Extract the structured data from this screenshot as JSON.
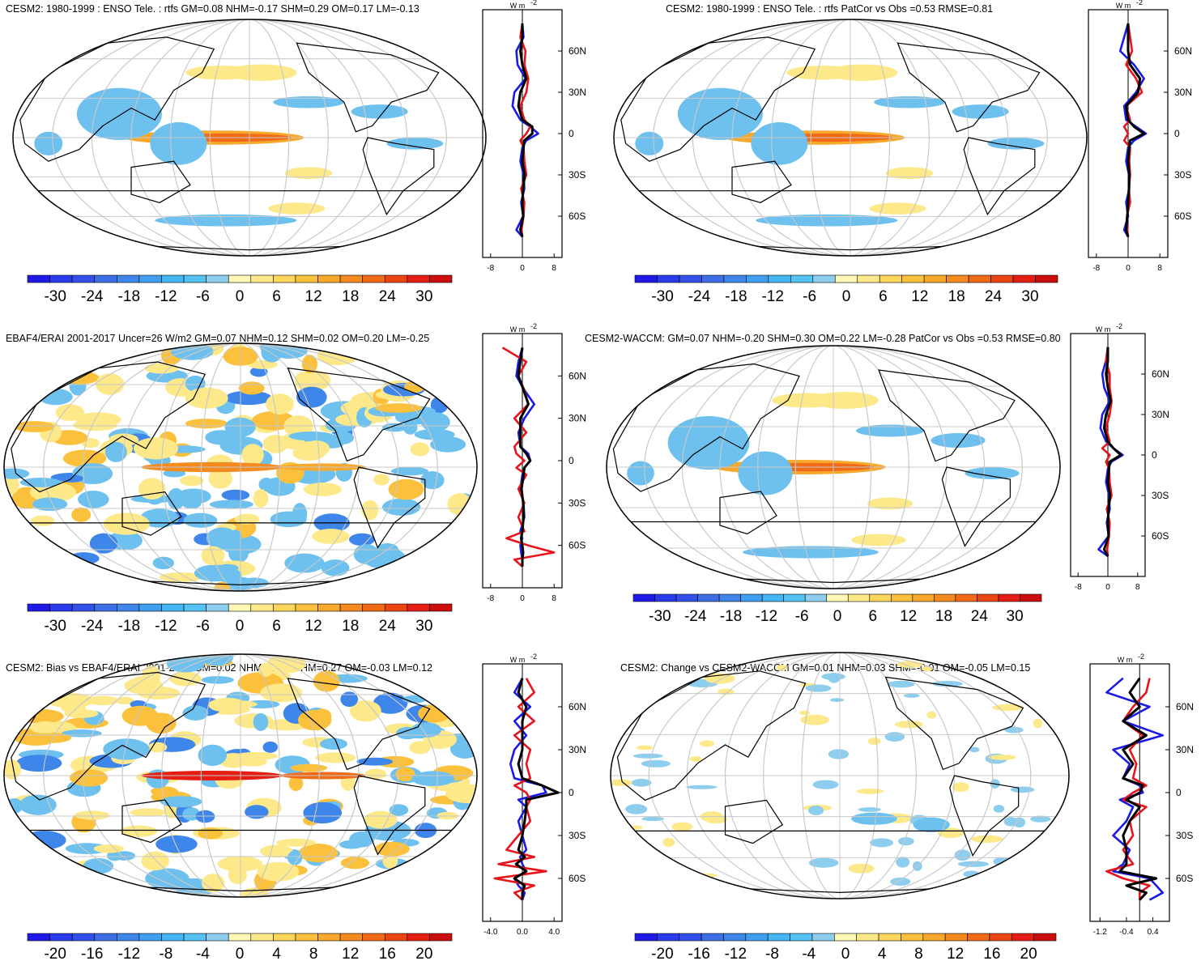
{
  "palette": {
    "neg": [
      "#2019e8",
      "#2a3bec",
      "#3450ea",
      "#3d6ee6",
      "#3f86ea",
      "#3f9ff0",
      "#44b6f4",
      "#54c2f2",
      "#8dcdee"
    ],
    "pos": [
      "#fff8b6",
      "#fde98a",
      "#fdd65c",
      "#fbc13c",
      "#f8a82a",
      "#f58a1f",
      "#f16a17",
      "#ec4514",
      "#e41e12",
      "#cc0d0d"
    ],
    "blue_line": "#1a1ae6",
    "red_line": "#e8141c",
    "black_line": "#000000",
    "grid": "#c8c8c8",
    "warm_shade": "#fde98a",
    "cool_shade": "#6ec1ee"
  },
  "chart_data": [
    {
      "type": "heatmap",
      "title": "CESM2: 1980-1999 : ENSO Tele. : rtfs GM=0.08 NHM=-0.17 SHM=0.29 OM=0.17 LM=-0.13",
      "colorbar_labels": [
        "-30",
        "-24",
        "-18",
        "-12",
        "-6",
        "0",
        "6",
        "12",
        "18",
        "24",
        "30"
      ],
      "zonal": {
        "unit": "W m",
        "unit_exp": "-2",
        "xticks": [
          "-8",
          "0",
          "8"
        ],
        "xlim": [
          -10,
          10
        ],
        "yticks": [
          "60N",
          "30N",
          "0",
          "30S",
          "60S"
        ],
        "ytick_values": [
          60,
          30,
          0,
          -30,
          -60
        ],
        "lat": [
          80,
          70,
          60,
          50,
          40,
          30,
          20,
          10,
          5,
          0,
          -5,
          -10,
          -20,
          -30,
          -40,
          -50,
          -60,
          -70,
          -75
        ],
        "series": [
          {
            "color": "blue",
            "values": [
              0,
              0.3,
              -1.5,
              -1.2,
              0.8,
              -2.0,
              -2.5,
              -0.5,
              2.0,
              4.0,
              1.0,
              0,
              -0.5,
              0.3,
              0.5,
              -0.3,
              0.2,
              -1.5,
              0
            ]
          },
          {
            "color": "red",
            "values": [
              0,
              -0.5,
              0.8,
              0.5,
              1.5,
              1.0,
              -0.5,
              0.5,
              2.0,
              1.0,
              -0.5,
              0.3,
              0.5,
              1.0,
              -0.3,
              0.5,
              0.3,
              -0.2,
              0
            ]
          },
          {
            "color": "black",
            "values": [
              0,
              0,
              -0.5,
              0,
              1.0,
              -0.5,
              -1.0,
              0,
              2.5,
              2.5,
              0.5,
              0.3,
              0,
              0.6,
              0.2,
              0,
              0.2,
              -0.5,
              0
            ]
          }
        ]
      }
    },
    {
      "type": "heatmap",
      "title": "CESM2: 1980-1999 : ENSO Tele. : rtfs PatCor vs Obs =0.53 RMSE=0.81",
      "colorbar_labels": [
        "-30",
        "-24",
        "-18",
        "-12",
        "-6",
        "0",
        "6",
        "12",
        "18",
        "24",
        "30"
      ],
      "zonal": {
        "unit": "W m",
        "unit_exp": "-2",
        "xticks": [
          "-8",
          "0",
          "8"
        ],
        "xlim": [
          -10,
          10
        ],
        "yticks": [
          "60N",
          "30N",
          "0",
          "30S",
          "60S"
        ],
        "ytick_values": [
          60,
          30,
          0,
          -30,
          -60
        ],
        "lat": [
          80,
          70,
          60,
          50,
          40,
          30,
          20,
          10,
          5,
          0,
          -5,
          -10,
          -20,
          -30,
          -40,
          -50,
          -60,
          -70,
          -75
        ],
        "series": [
          {
            "color": "blue",
            "values": [
              0,
              -1.0,
              -2.0,
              1.5,
              4.0,
              2.0,
              -1.0,
              -0.5,
              2.0,
              4.5,
              1.5,
              0,
              -0.5,
              0.2,
              0.3,
              -0.5,
              0,
              -1.0,
              0
            ]
          },
          {
            "color": "red",
            "values": [
              0,
              0.5,
              1.0,
              -0.5,
              2.0,
              3.5,
              -0.5,
              0.5,
              -1.0,
              0,
              -1.0,
              0.5,
              0.3,
              0.5,
              0.2,
              0.5,
              -0.3,
              -0.2,
              0
            ]
          },
          {
            "color": "black",
            "values": [
              0,
              0,
              0,
              0.5,
              3.0,
              2.5,
              -0.5,
              0,
              1.5,
              4.0,
              0.5,
              0.3,
              0,
              0.3,
              0.2,
              0,
              -0.2,
              -0.5,
              0
            ]
          }
        ]
      }
    },
    {
      "type": "heatmap",
      "title": "EBAF4/ERAI 2001-2017 Uncer=26 W/m2 GM=0.07 NHM=0.12 SHM=0.02 OM=0.20 LM=-0.25",
      "colorbar_labels": [
        "-30",
        "-24",
        "-18",
        "-12",
        "-6",
        "0",
        "6",
        "12",
        "18",
        "24",
        "30"
      ],
      "zonal": {
        "unit": "W m",
        "unit_exp": "-2",
        "xticks": [
          "-8",
          "0",
          "8"
        ],
        "xlim": [
          -10,
          10
        ],
        "yticks": [
          "60N",
          "30N",
          "0",
          "30S",
          "60S"
        ],
        "ytick_values": [
          60,
          30,
          0,
          -30,
          -60
        ],
        "lat": [
          80,
          70,
          60,
          50,
          40,
          30,
          20,
          10,
          5,
          0,
          -5,
          -10,
          -20,
          -30,
          -40,
          -50,
          -55,
          -60,
          -65,
          -70,
          -75
        ],
        "series": [
          {
            "color": "blue",
            "values": [
              0,
              -1.0,
              -1.5,
              0.5,
              3.0,
              0.5,
              -1.0,
              -0.5,
              1.5,
              2.0,
              0.5,
              0,
              -0.5,
              0.3,
              0.5,
              -0.5,
              0,
              -0.5,
              -0.3,
              0,
              0
            ]
          },
          {
            "color": "red",
            "values": [
              -5.0,
              1.0,
              -1.0,
              0.5,
              1.5,
              -2.0,
              1.0,
              -2.0,
              -1.5,
              0.5,
              -1.5,
              1.0,
              -1.0,
              0.5,
              -1.0,
              0.5,
              -4.0,
              1.5,
              8.0,
              -2.0,
              0
            ]
          },
          {
            "color": "black",
            "values": [
              0,
              -0.5,
              -1.0,
              0.3,
              1.5,
              -0.5,
              -0.5,
              -0.5,
              1.0,
              2.0,
              0.5,
              0.3,
              -0.2,
              0.2,
              0.3,
              0,
              -0.3,
              0,
              0.2,
              0,
              0
            ]
          }
        ]
      }
    },
    {
      "type": "heatmap",
      "title": "CESM2-WACCM: GM=0.07 NHM=-0.20 SHM=0.30 OM=0.22 LM=-0.28 PatCor vs Obs =0.53 RMSE=0.80",
      "colorbar_labels": [
        "-30",
        "-24",
        "-18",
        "-12",
        "-6",
        "0",
        "6",
        "12",
        "18",
        "24",
        "30"
      ],
      "zonal": {
        "unit": "W m",
        "unit_exp": "-2",
        "xticks": [
          "-8",
          "0",
          "8"
        ],
        "xlim": [
          -10,
          10
        ],
        "yticks": [
          "60N",
          "30N",
          "0",
          "30S",
          "60S"
        ],
        "ytick_values": [
          60,
          30,
          0,
          -30,
          -60
        ],
        "lat": [
          80,
          70,
          60,
          50,
          40,
          30,
          20,
          10,
          5,
          0,
          -5,
          -10,
          -20,
          -30,
          -40,
          -50,
          -60,
          -70,
          -75
        ],
        "series": [
          {
            "color": "blue",
            "values": [
              0,
              -0.5,
              -1.5,
              -1.0,
              0.5,
              -1.5,
              -2.0,
              -0.5,
              1.5,
              4.0,
              1.0,
              0,
              -0.5,
              0.3,
              0.5,
              -0.3,
              0.2,
              -2.5,
              0
            ]
          },
          {
            "color": "red",
            "values": [
              0,
              -0.5,
              0.5,
              0.5,
              1.0,
              0.5,
              -0.5,
              0.5,
              -1.5,
              0.5,
              -0.5,
              0.3,
              0.5,
              1.0,
              -0.3,
              0.5,
              0.3,
              -0.2,
              0
            ]
          },
          {
            "color": "black",
            "values": [
              0,
              0,
              -0.5,
              0,
              0.8,
              -0.5,
              -1.0,
              0,
              1.5,
              3.5,
              0.5,
              0.3,
              0,
              0.6,
              0.2,
              0,
              0.2,
              -1.0,
              0
            ]
          }
        ]
      }
    },
    {
      "type": "heatmap",
      "title": "CESM2: Bias vs EBAF4/ERAI 2001-2017 GM=0.02 NHM=-0.29 SHM=0.27 OM=-0.03 LM=0.12",
      "colorbar_labels": [
        "-20",
        "-16",
        "-12",
        "-8",
        "-4",
        "0",
        "4",
        "8",
        "12",
        "16",
        "20"
      ],
      "zonal": {
        "unit": "W m",
        "unit_exp": "-2",
        "xticks": [
          "-4.0",
          "0.0",
          "4.0"
        ],
        "xlim": [
          -5,
          5
        ],
        "yticks": [
          "60N",
          "30N",
          "0",
          "30S",
          "60S"
        ],
        "ytick_values": [
          60,
          30,
          0,
          -30,
          -60
        ],
        "lat": [
          80,
          70,
          60,
          50,
          40,
          30,
          20,
          10,
          5,
          0,
          -5,
          -10,
          -20,
          -30,
          -40,
          -45,
          -50,
          -55,
          -60,
          -65,
          -70,
          -75
        ],
        "series": [
          {
            "color": "blue",
            "values": [
              0,
              -1.0,
              1.0,
              -1.0,
              0.5,
              -1.0,
              -1.5,
              -1.0,
              2.5,
              3.0,
              -0.5,
              0.5,
              -0.5,
              0,
              0.5,
              -0.3,
              0,
              0.5,
              -1.0,
              -0.5,
              0.3,
              0
            ]
          },
          {
            "color": "red",
            "values": [
              0.5,
              1.5,
              -0.5,
              1.5,
              -1.0,
              1.0,
              0.5,
              1.0,
              -1.0,
              0.5,
              1.0,
              0.5,
              1.0,
              -0.5,
              -2.0,
              1.5,
              -3.0,
              3.0,
              -3.5,
              1.5,
              -1.0,
              0
            ]
          },
          {
            "color": "black",
            "values": [
              0,
              -0.5,
              0.5,
              0,
              0,
              0,
              -0.5,
              0,
              2.5,
              4.5,
              0.5,
              0.5,
              0.3,
              0,
              -0.5,
              0.3,
              -0.8,
              0.5,
              -1.0,
              0.3,
              0,
              0
            ]
          }
        ]
      }
    },
    {
      "type": "heatmap",
      "title": "CESM2: Change vs CESM2-WACCM GM=0.01 NHM=0.03 SHM=-0.01 OM=-0.05 LM=0.15",
      "colorbar_labels": [
        "-20",
        "-16",
        "-12",
        "-8",
        "-4",
        "0",
        "4",
        "8",
        "12",
        "16",
        "20"
      ],
      "zonal": {
        "unit": "W m",
        "unit_exp": "-2",
        "xticks": [
          "-1.2",
          "-0.4",
          "0.4"
        ],
        "xlim": [
          -1.5,
          0.9
        ],
        "yticks": [
          "60N",
          "30N",
          "0",
          "30S",
          "60S"
        ],
        "ytick_values": [
          60,
          30,
          0,
          -30,
          -60
        ],
        "lat": [
          80,
          70,
          60,
          50,
          40,
          30,
          20,
          10,
          5,
          0,
          -5,
          -10,
          -20,
          -30,
          -40,
          -50,
          -55,
          -60,
          -65,
          -70,
          -75
        ],
        "series": [
          {
            "color": "blue",
            "values": [
              -0.5,
              -1.0,
              0.3,
              -0.5,
              0.7,
              -0.8,
              -0.3,
              -0.5,
              0,
              0.1,
              -0.6,
              -0.2,
              -0.4,
              -0.8,
              -0.3,
              -0.5,
              -0.8,
              0.3,
              0.5,
              0.7,
              0.3
            ]
          },
          {
            "color": "red",
            "values": [
              0.3,
              0.2,
              -0.2,
              -0.5,
              0.1,
              -0.3,
              -0.1,
              -0.2,
              0.2,
              -0.2,
              -0.5,
              0.2,
              -0.3,
              -0.2,
              -0.5,
              -0.2,
              -1.0,
              -0.5,
              0.3,
              0,
              0
            ]
          },
          {
            "color": "black",
            "values": [
              0,
              -0.3,
              0,
              -0.5,
              0.2,
              -0.5,
              -0.2,
              -0.5,
              0.1,
              0,
              -0.4,
              0,
              -0.3,
              -0.5,
              -0.4,
              -0.4,
              -0.6,
              0.5,
              -0.4,
              0.2,
              0
            ]
          }
        ]
      }
    }
  ]
}
